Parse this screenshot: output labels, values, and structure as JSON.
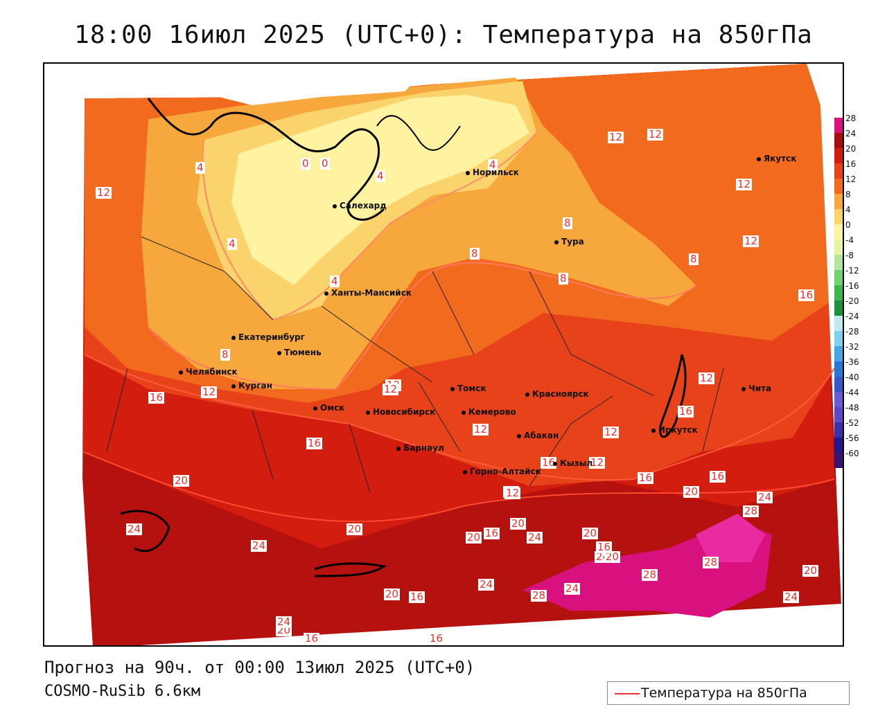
{
  "title": "18:00 16июл 2025 (UTC+0): Температура на 850гПа",
  "footer": {
    "forecast": "Прогноз на 90ч. от 00:00 13июл 2025 (UTC+0)",
    "model": "COSMO-RuSib 6.6км"
  },
  "legend_key": {
    "label": "Температура на 850гПа",
    "color": "#e8302a"
  },
  "colorbar": [
    {
      "label": "28",
      "color": "#d8117f"
    },
    {
      "label": "24",
      "color": "#a80f0f"
    },
    {
      "label": "20",
      "color": "#d21d0f"
    },
    {
      "label": "16",
      "color": "#e8421a"
    },
    {
      "label": "12",
      "color": "#f26a1e"
    },
    {
      "label": "8",
      "color": "#f6a83c"
    },
    {
      "label": "4",
      "color": "#fbd36c"
    },
    {
      "label": "0",
      "color": "#fff2a0"
    },
    {
      "label": "-4",
      "color": "#e8f5a0"
    },
    {
      "label": "-8",
      "color": "#b0e6a0"
    },
    {
      "label": "-12",
      "color": "#6fd36f"
    },
    {
      "label": "-16",
      "color": "#3cb64a"
    },
    {
      "label": "-20",
      "color": "#1f8f3c"
    },
    {
      "label": "-24",
      "color": "#bfeaf2"
    },
    {
      "label": "-28",
      "color": "#7fd0ea"
    },
    {
      "label": "-32",
      "color": "#46a6e6"
    },
    {
      "label": "-36",
      "color": "#2878d2"
    },
    {
      "label": "-40",
      "color": "#3a56c8"
    },
    {
      "label": "-44",
      "color": "#6a5ad6"
    },
    {
      "label": "-48",
      "color": "#5b49c6"
    },
    {
      "label": "-52",
      "color": "#3c2faa"
    },
    {
      "label": "-56",
      "color": "#24178a"
    },
    {
      "label": "-60",
      "color": "#3a1470"
    }
  ],
  "cities": [
    {
      "name": "Норильск"
    },
    {
      "name": "Якутск"
    },
    {
      "name": "Салехард"
    },
    {
      "name": "Тура"
    },
    {
      "name": "Ханты-Мансийск"
    },
    {
      "name": "Екатеринбург"
    },
    {
      "name": "Тюмень"
    },
    {
      "name": "Челябинск"
    },
    {
      "name": "Курган"
    },
    {
      "name": "Омск"
    },
    {
      "name": "Новосибирск"
    },
    {
      "name": "Томск"
    },
    {
      "name": "Красноярск"
    },
    {
      "name": "Кемерово"
    },
    {
      "name": "Абакан"
    },
    {
      "name": "Барнаул"
    },
    {
      "name": "Горно-Алтайск"
    },
    {
      "name": "Кызыл"
    },
    {
      "name": "Иркутск"
    },
    {
      "name": "Чита"
    }
  ],
  "isolines": [
    "12",
    "12",
    "12",
    "12",
    "12",
    "12",
    "16",
    "4",
    "4",
    "4",
    "4",
    "0",
    "0",
    "4",
    "8",
    "8",
    "8",
    "8",
    "8",
    "12",
    "12",
    "12",
    "12",
    "12",
    "16",
    "12",
    "16",
    "16",
    "16",
    "16",
    "20",
    "20",
    "20",
    "20",
    "24",
    "24",
    "28",
    "28",
    "28",
    "20",
    "24",
    "24",
    "20",
    "24",
    "24",
    "20",
    "16",
    "24",
    "28",
    "24",
    "20",
    "20",
    "16",
    "16",
    "16",
    "20",
    "24",
    "16",
    "12",
    "16",
    "12"
  ]
}
